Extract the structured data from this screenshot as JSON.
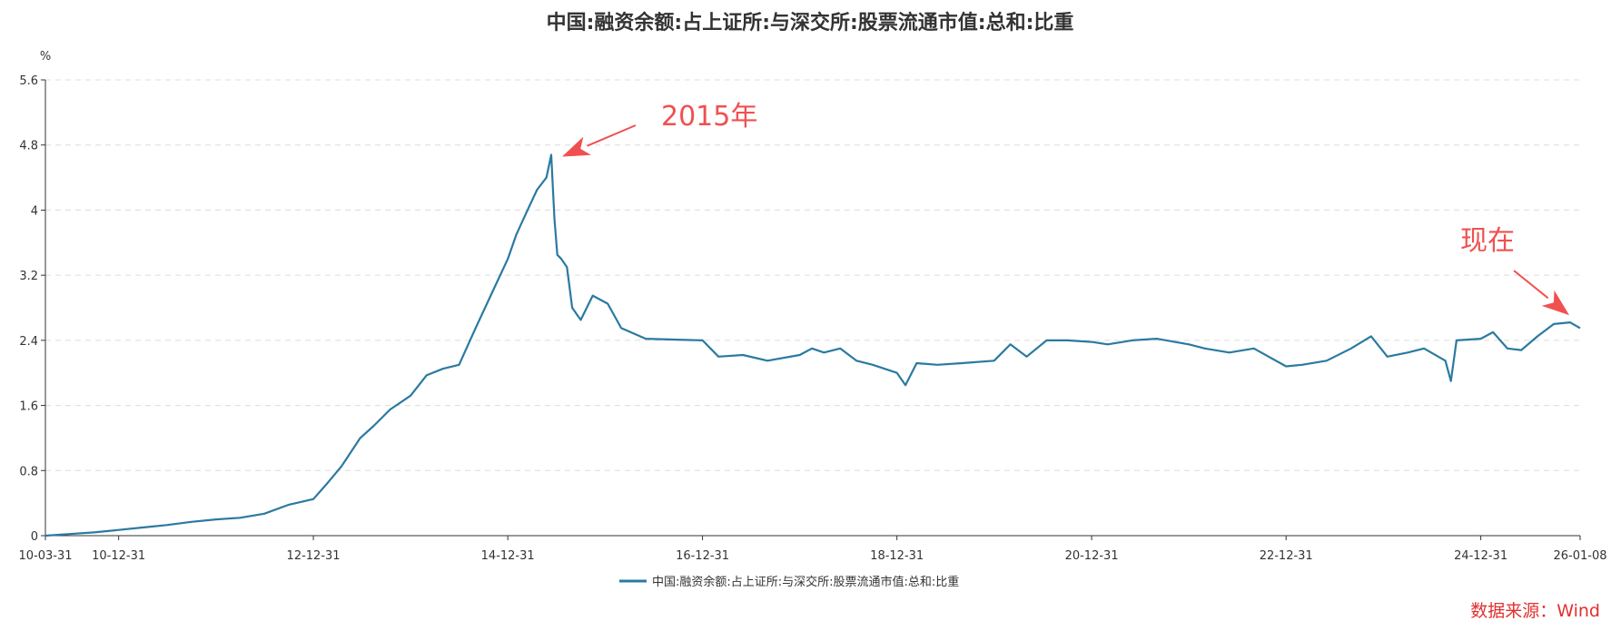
{
  "chart_data": {
    "type": "line",
    "title": "中国:融资余额:占上证所:与深交所:股票流通市值:总和:比重",
    "ylabel": "%",
    "xlabel": "",
    "ylim": [
      0,
      5.6
    ],
    "yticks": [
      "0",
      "0.8",
      "1.6",
      "2.4",
      "3.2",
      "4",
      "4.8",
      "5.6"
    ],
    "xticks": [
      {
        "date": "2010-03-31",
        "label": "10-03-31"
      },
      {
        "date": "2010-12-31",
        "label": "10-12-31"
      },
      {
        "date": "2012-12-31",
        "label": "12-12-31"
      },
      {
        "date": "2014-12-31",
        "label": "14-12-31"
      },
      {
        "date": "2016-12-31",
        "label": "16-12-31"
      },
      {
        "date": "2018-12-31",
        "label": "18-12-31"
      },
      {
        "date": "2020-12-31",
        "label": "20-12-31"
      },
      {
        "date": "2022-12-31",
        "label": "22-12-31"
      },
      {
        "date": "2024-12-31",
        "label": "24-12-31"
      },
      {
        "date": "2026-01-08",
        "label": "26-01-08"
      }
    ],
    "xlim": [
      "2010-03-31",
      "2026-01-08"
    ],
    "grid": true,
    "legend_position": "bottom-center",
    "series": [
      {
        "name": "中国:融资余额:占上证所:与深交所:股票流通市值:总和:比重",
        "color": "#2a7aa0",
        "points": [
          [
            "2010-03-31",
            0.0
          ],
          [
            "2010-06-30",
            0.02
          ],
          [
            "2010-09-30",
            0.04
          ],
          [
            "2010-12-31",
            0.07
          ],
          [
            "2011-03-31",
            0.1
          ],
          [
            "2011-06-30",
            0.13
          ],
          [
            "2011-09-30",
            0.17
          ],
          [
            "2011-12-31",
            0.2
          ],
          [
            "2012-03-31",
            0.22
          ],
          [
            "2012-06-30",
            0.27
          ],
          [
            "2012-09-30",
            0.38
          ],
          [
            "2012-12-31",
            0.45
          ],
          [
            "2013-02-15",
            0.62
          ],
          [
            "2013-04-15",
            0.85
          ],
          [
            "2013-06-25",
            1.2
          ],
          [
            "2013-08-15",
            1.35
          ],
          [
            "2013-10-15",
            1.55
          ],
          [
            "2013-12-31",
            1.72
          ],
          [
            "2014-03-01",
            1.97
          ],
          [
            "2014-05-01",
            2.05
          ],
          [
            "2014-07-01",
            2.1
          ],
          [
            "2014-09-01",
            2.55
          ],
          [
            "2014-11-01",
            2.98
          ],
          [
            "2014-12-31",
            3.4
          ],
          [
            "2015-02-01",
            3.7
          ],
          [
            "2015-03-15",
            4.0
          ],
          [
            "2015-04-20",
            4.25
          ],
          [
            "2015-05-25",
            4.4
          ],
          [
            "2015-06-12",
            4.68
          ],
          [
            "2015-06-24",
            3.9
          ],
          [
            "2015-07-05",
            3.45
          ],
          [
            "2015-07-20",
            3.4
          ],
          [
            "2015-08-10",
            3.3
          ],
          [
            "2015-08-30",
            2.8
          ],
          [
            "2015-10-01",
            2.65
          ],
          [
            "2015-11-15",
            2.95
          ],
          [
            "2016-01-10",
            2.85
          ],
          [
            "2016-03-01",
            2.55
          ],
          [
            "2016-06-01",
            2.42
          ],
          [
            "2016-12-31",
            2.4
          ],
          [
            "2017-03-01",
            2.2
          ],
          [
            "2017-06-01",
            2.22
          ],
          [
            "2017-09-01",
            2.15
          ],
          [
            "2017-12-31",
            2.22
          ],
          [
            "2018-02-15",
            2.3
          ],
          [
            "2018-04-01",
            2.25
          ],
          [
            "2018-06-01",
            2.3
          ],
          [
            "2018-08-01",
            2.15
          ],
          [
            "2018-10-01",
            2.1
          ],
          [
            "2018-12-31",
            2.0
          ],
          [
            "2019-02-01",
            1.85
          ],
          [
            "2019-03-15",
            2.12
          ],
          [
            "2019-06-01",
            2.1
          ],
          [
            "2019-09-01",
            2.12
          ],
          [
            "2019-12-31",
            2.15
          ],
          [
            "2020-03-01",
            2.35
          ],
          [
            "2020-05-01",
            2.2
          ],
          [
            "2020-07-15",
            2.4
          ],
          [
            "2020-10-01",
            2.4
          ],
          [
            "2020-12-31",
            2.38
          ],
          [
            "2021-03-01",
            2.35
          ],
          [
            "2021-06-01",
            2.4
          ],
          [
            "2021-09-01",
            2.42
          ],
          [
            "2021-12-31",
            2.35
          ],
          [
            "2022-03-01",
            2.3
          ],
          [
            "2022-06-01",
            2.25
          ],
          [
            "2022-09-01",
            2.3
          ],
          [
            "2022-12-31",
            2.08
          ],
          [
            "2023-03-01",
            2.1
          ],
          [
            "2023-06-01",
            2.15
          ],
          [
            "2023-09-01",
            2.3
          ],
          [
            "2023-11-15",
            2.45
          ],
          [
            "2024-01-15",
            2.2
          ],
          [
            "2024-04-01",
            2.25
          ],
          [
            "2024-06-01",
            2.3
          ],
          [
            "2024-08-20",
            2.15
          ],
          [
            "2024-09-10",
            1.9
          ],
          [
            "2024-10-01",
            2.4
          ],
          [
            "2024-12-31",
            2.42
          ],
          [
            "2025-02-15",
            2.5
          ],
          [
            "2025-04-10",
            2.3
          ],
          [
            "2025-06-01",
            2.28
          ],
          [
            "2025-08-01",
            2.45
          ],
          [
            "2025-10-01",
            2.6
          ],
          [
            "2025-12-01",
            2.62
          ],
          [
            "2026-01-08",
            2.55
          ]
        ]
      }
    ],
    "annotations": [
      {
        "text": "2015年",
        "color": "#f05050",
        "arrow_to": [
          "2015-06-12",
          4.68
        ]
      },
      {
        "text": "现在",
        "color": "#f05050",
        "arrow_to": [
          "2026-01-08",
          2.62
        ]
      }
    ]
  },
  "source": {
    "text": "数据来源：Wind",
    "color": "#e03030"
  }
}
